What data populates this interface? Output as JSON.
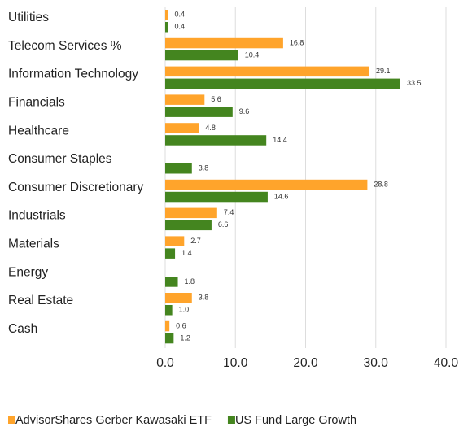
{
  "chart_data": {
    "type": "bar",
    "orientation": "horizontal",
    "categories": [
      "Utilities",
      "Telecom Services %",
      "Information Technology",
      "Financials",
      "Healthcare",
      "Consumer Staples",
      "Consumer Discretionary",
      "Industrials",
      "Materials",
      "Energy",
      "Real Estate",
      "Cash"
    ],
    "series": [
      {
        "name": "AdvisorShares Gerber Kawasaki ETF",
        "color": "#ffa42b",
        "values": [
          0.4,
          16.8,
          29.1,
          5.6,
          4.8,
          null,
          28.8,
          7.4,
          2.7,
          null,
          3.8,
          0.6
        ],
        "value_labels": [
          "0.4",
          "16.8",
          "29.1",
          "5.6",
          "4.8",
          null,
          "28.8",
          "7.4",
          "2.7",
          null,
          "3.8",
          "0.6"
        ]
      },
      {
        "name": "US Fund Large Growth",
        "color": "#44851f",
        "values": [
          0.4,
          10.4,
          33.5,
          9.6,
          14.4,
          3.8,
          14.6,
          6.6,
          1.4,
          1.8,
          1.0,
          1.2
        ],
        "value_labels": [
          "0.4",
          "10.4",
          "33.5",
          "9.6",
          "14.4",
          "3.8",
          "14.6",
          "6.6",
          "1.4",
          "1.8",
          "1.0",
          "1.2"
        ]
      }
    ],
    "xlim": [
      0,
      40
    ],
    "xticks": [
      {
        "value": 0,
        "label": "0.0"
      },
      {
        "value": 10,
        "label": "10.0"
      },
      {
        "value": 20,
        "label": "20.0"
      },
      {
        "value": 30,
        "label": "30.0"
      },
      {
        "value": 40,
        "label": "40.0"
      }
    ],
    "grid": true,
    "legend": "bottom"
  }
}
